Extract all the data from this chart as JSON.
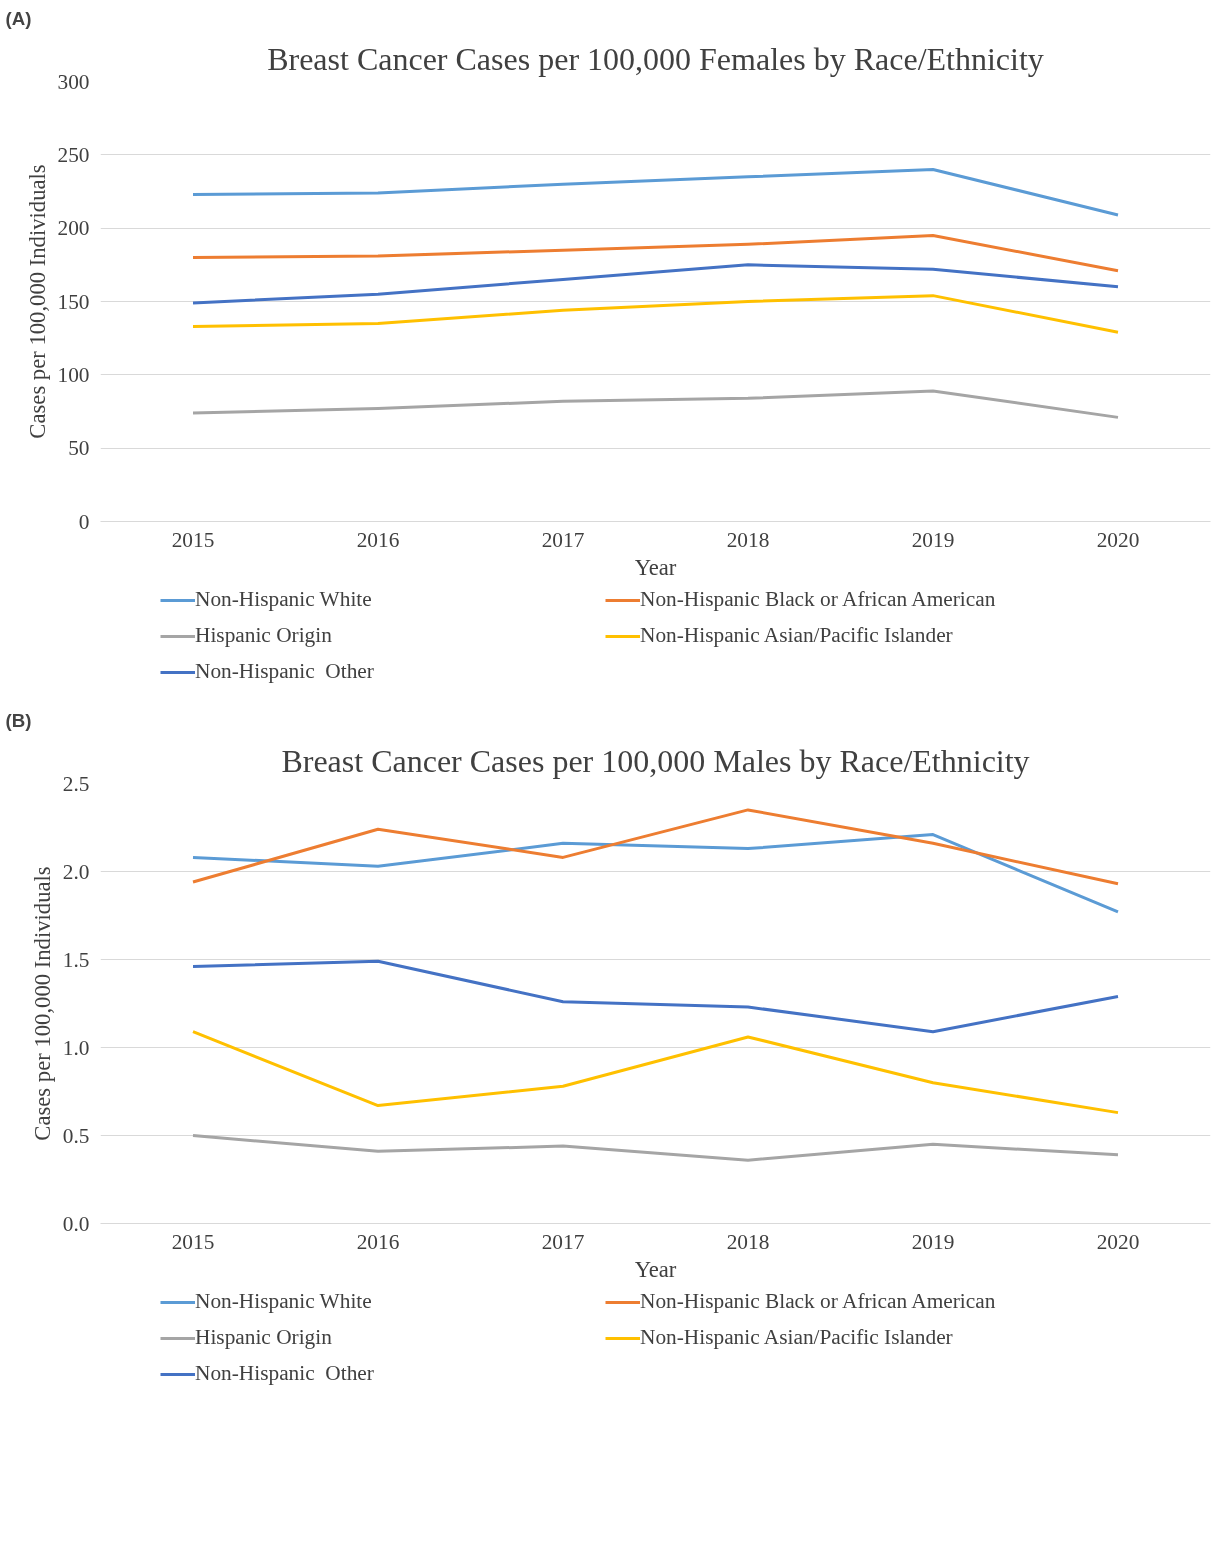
{
  "chart_data": [
    {
      "type": "line",
      "title": "Breast Cancer Cases per 100,000 Females by Race/Ethnicity",
      "xlabel": "Year",
      "ylabel": "Cases per 100,000 Individuals",
      "annotations": [
        "(A)"
      ],
      "x": [
        2015,
        2016,
        2017,
        2018,
        2019,
        2020
      ],
      "xlim": [
        2014.5,
        2020.5
      ],
      "xticks": [
        2015,
        2016,
        2017,
        2018,
        2019,
        2020
      ],
      "ylim": [
        0,
        300
      ],
      "yticks": [
        0,
        50,
        100,
        150,
        200,
        250,
        300
      ],
      "grid": "y",
      "legend": "bottom",
      "marker": "none",
      "line_style": "solid",
      "series": [
        {
          "name": "Non-Hispanic White",
          "color": "#5b9bd5",
          "values": [
            223,
            224,
            230,
            235,
            240,
            209
          ]
        },
        {
          "name": "Non-Hispanic Black or African American",
          "color": "#ed7d31",
          "values": [
            180,
            181,
            185,
            189,
            195,
            171
          ]
        },
        {
          "name": "Hispanic Origin",
          "color": "#a5a5a5",
          "values": [
            74,
            77,
            82,
            84,
            89,
            71
          ]
        },
        {
          "name": "Non-Hispanic Asian/Pacific Islander",
          "color": "#ffc000",
          "values": [
            133,
            135,
            144,
            150,
            154,
            129
          ]
        },
        {
          "name": "Non-Hispanic  Other",
          "color": "#4472c4",
          "values": [
            149,
            155,
            165,
            175,
            172,
            160
          ]
        }
      ]
    },
    {
      "type": "line",
      "title": "Breast Cancer Cases per 100,000 Males by Race/Ethnicity",
      "xlabel": "Year",
      "ylabel": "Cases per 100,000 Individuals",
      "annotations": [
        "(B)"
      ],
      "x": [
        2015,
        2016,
        2017,
        2018,
        2019,
        2020
      ],
      "xlim": [
        2014.5,
        2020.5
      ],
      "xticks": [
        2015,
        2016,
        2017,
        2018,
        2019,
        2020
      ],
      "ylim": [
        0,
        2.5
      ],
      "yticks": [
        {
          "value": 0,
          "label": "0.0"
        },
        {
          "value": 0.5,
          "label": "0.5"
        },
        {
          "value": 1,
          "label": "1.0"
        },
        {
          "value": 1.5,
          "label": "1.5"
        },
        {
          "value": 2,
          "label": "2.0"
        },
        {
          "value": 2.5,
          "label": "2.5"
        }
      ],
      "grid": "y",
      "legend": "bottom",
      "marker": "none",
      "line_style": "solid",
      "series": [
        {
          "name": "Non-Hispanic White",
          "color": "#5b9bd5",
          "values": [
            2.08,
            2.03,
            2.16,
            2.13,
            2.21,
            1.77
          ]
        },
        {
          "name": "Non-Hispanic Black or African American",
          "color": "#ed7d31",
          "values": [
            1.94,
            2.24,
            2.08,
            2.35,
            2.16,
            1.93
          ]
        },
        {
          "name": "Hispanic Origin",
          "color": "#a5a5a5",
          "values": [
            0.5,
            0.41,
            0.44,
            0.36,
            0.45,
            0.39
          ]
        },
        {
          "name": "Non-Hispanic Asian/Pacific Islander",
          "color": "#ffc000",
          "values": [
            1.09,
            0.67,
            0.78,
            1.06,
            0.8,
            0.63
          ]
        },
        {
          "name": "Non-Hispanic  Other",
          "color": "#4472c4",
          "values": [
            1.46,
            1.49,
            1.26,
            1.23,
            1.09,
            1.29
          ]
        }
      ]
    }
  ]
}
